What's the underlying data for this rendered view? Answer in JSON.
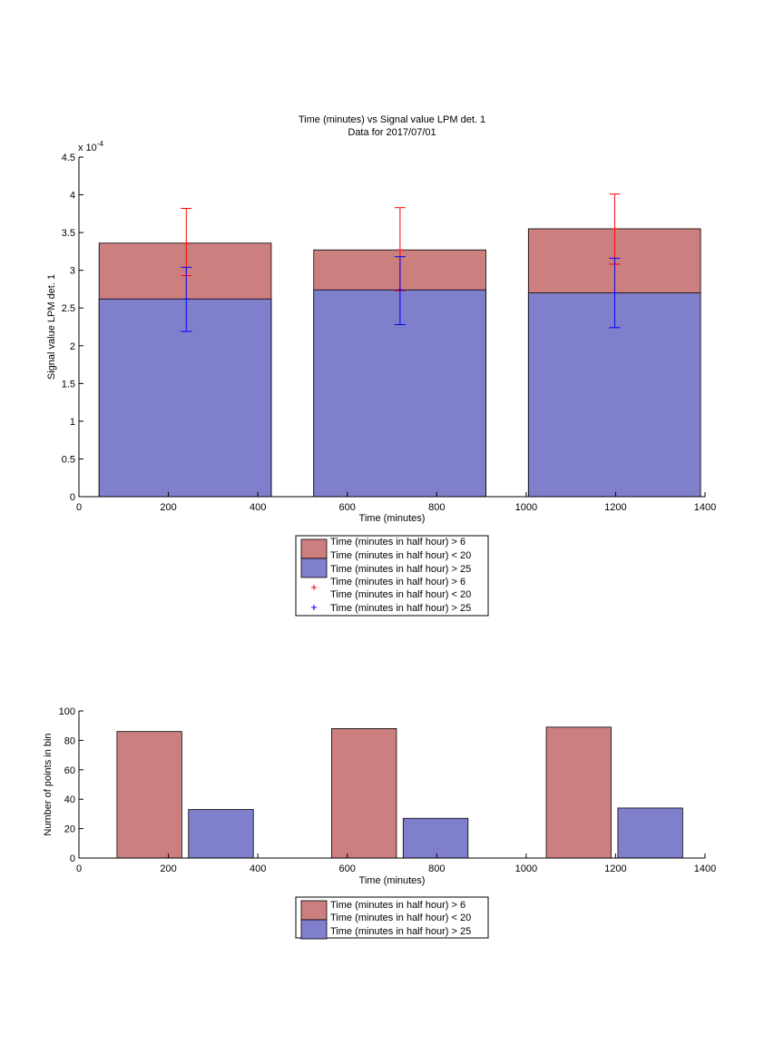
{
  "colors": {
    "red_fill": "#cc7f7f",
    "blue_fill": "#7f7fcc",
    "red_err": "#ff0000",
    "blue_err": "#0000ff",
    "edge": "#000000"
  },
  "chart_data": [
    {
      "type": "bar",
      "title": "Time (minutes) vs Signal value LPM det. 1",
      "subtitle": "Data for 2017/07/01",
      "xlabel": "Time (minutes)",
      "ylabel": "Signal value LPM det. 1",
      "exponent_label": "x 10",
      "exponent_power": "-4",
      "xlim": [
        0,
        1400
      ],
      "ylim": [
        0,
        4.5
      ],
      "xticks": [
        "0",
        "200",
        "400",
        "600",
        "800",
        "1000",
        "1200",
        "1400"
      ],
      "yticks": [
        "0",
        "0.5",
        "1",
        "1.5",
        "2",
        "2.5",
        "3",
        "3.5",
        "4",
        "4.5"
      ],
      "bins": [
        {
          "x0": 45,
          "x1": 430,
          "center": 240
        },
        {
          "x0": 525,
          "x1": 910,
          "center": 718
        },
        {
          "x0": 1005,
          "x1": 1390,
          "center": 1198
        }
      ],
      "series": [
        {
          "name": "Time (minutes in half hour) > 6\nTime (minutes in half hour) < 20",
          "color": "#cc7f7f",
          "values": [
            3.36,
            3.27,
            3.55
          ],
          "err_low": [
            2.93,
            2.73,
            3.08
          ],
          "err_high": [
            3.82,
            3.83,
            4.01
          ],
          "err_color": "#ff0000"
        },
        {
          "name": "Time (minutes in half hour) > 25",
          "color": "#7f7fcc",
          "values": [
            2.62,
            2.74,
            2.7
          ],
          "err_low": [
            2.19,
            2.28,
            2.24
          ],
          "err_high": [
            3.04,
            3.18,
            3.16
          ],
          "err_color": "#0000ff"
        }
      ],
      "legend": {
        "placement": "below",
        "entries": [
          "Time (minutes in half hour) > 6",
          "Time (minutes in half hour) < 20",
          "Time (minutes in half hour) > 25",
          "Time (minutes in half hour) > 6",
          "Time (minutes in half hour) < 20",
          "Time (minutes in half hour) > 25"
        ]
      }
    },
    {
      "type": "bar",
      "xlabel": "Time (minutes)",
      "ylabel": "Number of points in bin",
      "xlim": [
        0,
        1400
      ],
      "ylim": [
        0,
        100
      ],
      "xticks": [
        "0",
        "200",
        "400",
        "600",
        "800",
        "1000",
        "1200",
        "1400"
      ],
      "yticks": [
        "0",
        "20",
        "40",
        "60",
        "80",
        "100"
      ],
      "series": [
        {
          "name": "Time (minutes in half hour) > 6\nTime (minutes in half hour) < 20",
          "color": "#cc7f7f",
          "bars": [
            [
              85,
              230,
              86
            ],
            [
              565,
              710,
              88
            ],
            [
              1045,
              1190,
              89
            ]
          ]
        },
        {
          "name": "Time (minutes in half hour) > 25",
          "color": "#7f7fcc",
          "bars": [
            [
              245,
              390,
              33
            ],
            [
              725,
              870,
              27
            ],
            [
              1205,
              1350,
              34
            ]
          ]
        }
      ],
      "legend": {
        "placement": "below",
        "entries": [
          "Time (minutes in half hour) > 6",
          "Time (minutes in half hour) < 20",
          "Time (minutes in half hour) > 25"
        ]
      }
    }
  ]
}
